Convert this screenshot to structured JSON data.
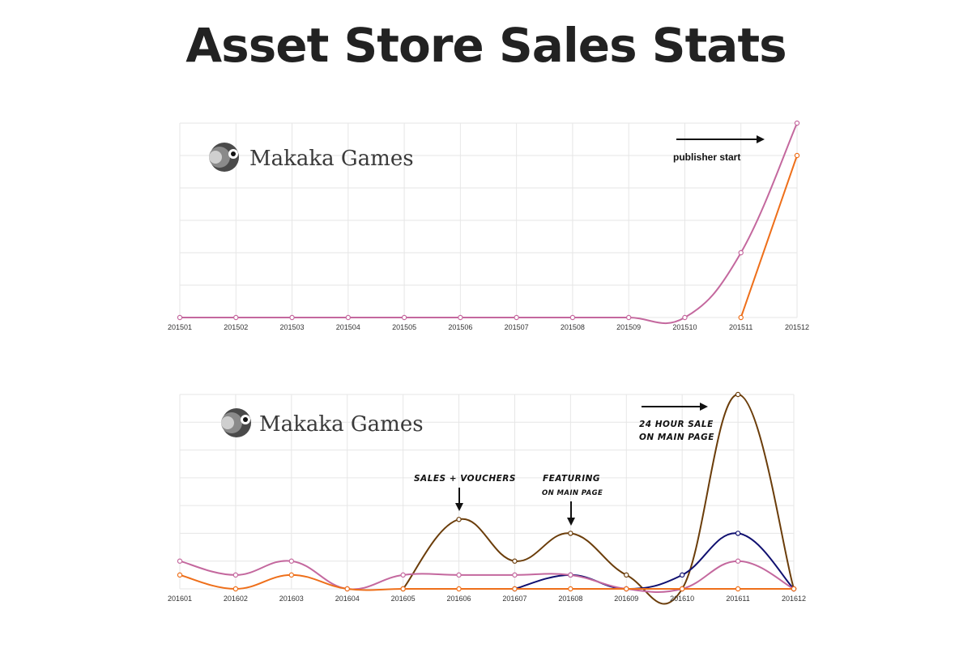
{
  "title": "Asset Store Sales Stats",
  "logo_text": "Makaka Games",
  "colors": {
    "pink": "#c4689e",
    "orange": "#ee6f1a",
    "brown": "#6b3d0a",
    "navy": "#101070",
    "grid": "#e6e6e6"
  },
  "chart_data": [
    {
      "type": "line",
      "categories": [
        "201501",
        "201502",
        "201503",
        "201504",
        "201505",
        "201506",
        "201507",
        "201508",
        "201509",
        "201510",
        "201511",
        "201512"
      ],
      "ylim": [
        0,
        6
      ],
      "grid": true,
      "series": [
        {
          "color": "#c4689e",
          "values": [
            0,
            0,
            0,
            0,
            0,
            0,
            0,
            0,
            0,
            0,
            2,
            6
          ]
        },
        {
          "color": "#ee6f1a",
          "values": [
            null,
            null,
            null,
            null,
            null,
            null,
            null,
            null,
            null,
            null,
            0,
            5
          ]
        }
      ],
      "annotations": [
        {
          "text": "publisher start",
          "arrow": "right"
        }
      ]
    },
    {
      "type": "line",
      "categories": [
        "201601",
        "201602",
        "201603",
        "201604",
        "201605",
        "201606",
        "201607",
        "201608",
        "201609",
        "201610",
        "201611",
        "201612"
      ],
      "ylim": [
        0,
        14
      ],
      "grid": true,
      "series": [
        {
          "color": "#6b3d0a",
          "values": [
            null,
            null,
            null,
            null,
            0,
            5,
            2,
            4,
            1,
            0,
            14,
            0
          ]
        },
        {
          "color": "#101070",
          "values": [
            null,
            null,
            null,
            null,
            null,
            null,
            0,
            1,
            0,
            1,
            4,
            0
          ]
        },
        {
          "color": "#c4689e",
          "values": [
            2,
            1,
            2,
            0,
            1,
            1,
            1,
            1,
            0,
            0,
            2,
            0
          ]
        },
        {
          "color": "#ee6f1a",
          "values": [
            1,
            0,
            1,
            0,
            0,
            0,
            0,
            0,
            0,
            0,
            0,
            0
          ]
        }
      ],
      "annotations": [
        {
          "lines": [
            "SALES + VOUCHERS"
          ]
        },
        {
          "lines": [
            "FEATURING",
            "ON MAIN PAGE"
          ]
        },
        {
          "lines": [
            "24 HOUR SALE",
            "ON MAIN PAGE"
          ]
        }
      ]
    }
  ]
}
